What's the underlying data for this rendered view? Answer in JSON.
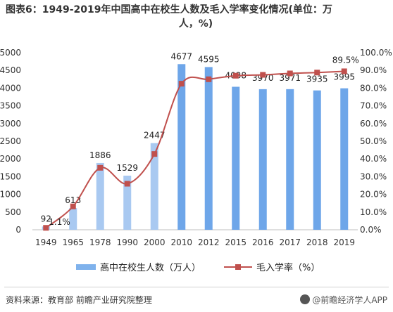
{
  "title_line1": "图表6：1949-2019年中国高中在校生人数及毛入学率变化情况(单位：万",
  "title_line2": "人，%)",
  "footer": {
    "source": "资料来源：教育部 前瞻产业研究院整理",
    "brand": "@前瞻经济学人APP"
  },
  "colors": {
    "bar": "#6ea6e9",
    "bar_light": "#a9c9f1",
    "line": "#c0504d"
  },
  "chart_data": {
    "type": "bar",
    "categories": [
      "1949",
      "1965",
      "1978",
      "1990",
      "2000",
      "2010",
      "2012",
      "2015",
      "2016",
      "2017",
      "2018",
      "2019"
    ],
    "series": [
      {
        "name": "高中在校生人数（万人）",
        "type": "bar",
        "axis": "left",
        "values": [
          92,
          613,
          1886,
          1529,
          2447,
          4677,
          4595,
          4038,
          3970,
          3971,
          3935,
          3995
        ],
        "labels": [
          "92",
          "613",
          "1886",
          "1529",
          "2447",
          "4677",
          "4595",
          "4038",
          "3970",
          "3971",
          "3935",
          "3995"
        ]
      },
      {
        "name": "毛入学率（%）",
        "type": "line",
        "axis": "right",
        "values": [
          1.1,
          13.2,
          35.0,
          26.0,
          42.8,
          82.5,
          85.0,
          87.0,
          87.5,
          88.3,
          88.8,
          89.5
        ],
        "labels": [
          "1.1%",
          "",
          "",
          "",
          "",
          "",
          "",
          "",
          "",
          "",
          "",
          "89.5%"
        ]
      }
    ],
    "left_axis": {
      "ylim": [
        0,
        5000
      ],
      "ticks": [
        "0",
        "500",
        "1000",
        "1500",
        "2000",
        "2500",
        "3000",
        "3500",
        "4000",
        "4500",
        "5000"
      ]
    },
    "right_axis": {
      "ylim": [
        0,
        100
      ],
      "ticks": [
        "0.0%",
        "10.0%",
        "20.0%",
        "30.0%",
        "40.0%",
        "50.0%",
        "60.0%",
        "70.0%",
        "80.0%",
        "90.0%",
        "100.0%"
      ]
    },
    "legend_position": "bottom",
    "grid": false
  }
}
